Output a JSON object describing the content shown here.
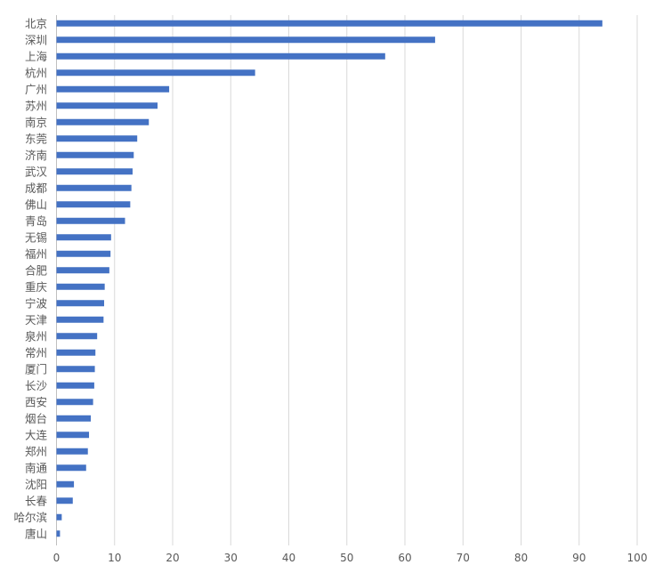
{
  "chart_data": {
    "type": "bar",
    "orientation": "horizontal",
    "categories": [
      "北京",
      "深圳",
      "上海",
      "杭州",
      "广州",
      "苏州",
      "南京",
      "东莞",
      "济南",
      "武汉",
      "成都",
      "佛山",
      "青岛",
      "无锡",
      "福州",
      "合肥",
      "重庆",
      "宁波",
      "天津",
      "泉州",
      "常州",
      "厦门",
      "长沙",
      "西安",
      "烟台",
      "大连",
      "郑州",
      "南通",
      "沈阳",
      "长春",
      "哈尔滨",
      "唐山"
    ],
    "series": [
      {
        "values": [
          94,
          65.2,
          56.6,
          34.2,
          19.4,
          17.4,
          15.9,
          13.9,
          13.3,
          13.1,
          12.9,
          12.7,
          11.8,
          9.4,
          9.3,
          9.1,
          8.3,
          8.2,
          8.1,
          7.0,
          6.7,
          6.6,
          6.5,
          6.3,
          5.9,
          5.6,
          5.4,
          5.1,
          3.0,
          2.8,
          0.9,
          0.6
        ]
      }
    ],
    "xlim": [
      0,
      100
    ],
    "xticks": [
      "0",
      "10",
      "20",
      "30",
      "40",
      "50",
      "60",
      "70",
      "80",
      "90",
      "100"
    ],
    "title": "",
    "xlabel": "",
    "ylabel": "",
    "grid": "vertical",
    "legend": "none",
    "bar_color": "#4472C4",
    "grid_color": "#D9D9D9"
  }
}
